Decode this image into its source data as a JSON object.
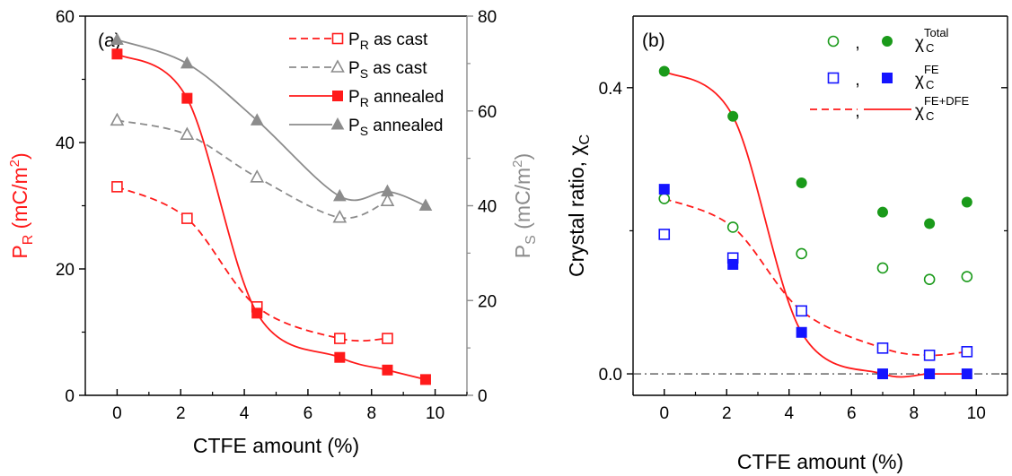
{
  "colors": {
    "red": "#ff1a1a",
    "gray": "#8c8c8c",
    "green": "#1a9a1a",
    "blue": "#1414ff",
    "black": "#000000"
  },
  "chart_data": [
    {
      "type": "line",
      "panel_label": "(a)",
      "xlabel": "CTFE amount (%)",
      "xlim": [
        -1,
        11
      ],
      "xticks": [
        "0",
        "2",
        "4",
        "6",
        "8",
        "10"
      ],
      "ylabel_left": {
        "main": "P",
        "sub": "R",
        "unit_pre": " (mC/m",
        "unit_sup": "2",
        "unit_post": ")"
      },
      "ylabel_right": {
        "main": "P",
        "sub": "S",
        "unit_pre": " (mC/m",
        "unit_sup": "2",
        "unit_post": ")"
      },
      "ylim_left": [
        0,
        60
      ],
      "yticks_left": [
        "0",
        "20",
        "40",
        "60"
      ],
      "ylim_right": [
        0,
        80
      ],
      "yticks_right": [
        "0",
        "20",
        "40",
        "60",
        "80"
      ],
      "legend_position": "top-right",
      "series": [
        {
          "name_main": "P",
          "name_sub": "R",
          "name_rest": " as cast",
          "axis": "left",
          "color_key": "red",
          "marker": "square-open",
          "dashed": true,
          "x": [
            0,
            2.2,
            4.4,
            7,
            8.5
          ],
          "y": [
            33,
            28,
            14,
            9,
            9
          ]
        },
        {
          "name_main": "P",
          "name_sub": "S",
          "name_rest": " as cast",
          "axis": "right",
          "color_key": "gray",
          "marker": "triangle-open",
          "dashed": true,
          "x": [
            0,
            2.2,
            4.4,
            7,
            8.5
          ],
          "y": [
            58,
            55,
            46,
            37.5,
            41
          ]
        },
        {
          "name_main": "P",
          "name_sub": "R",
          "name_rest": " annealed",
          "axis": "left",
          "color_key": "red",
          "marker": "square-filled",
          "dashed": false,
          "x": [
            0,
            2.2,
            4.4,
            7,
            8.5,
            9.7
          ],
          "y": [
            54,
            47,
            13,
            6,
            4,
            2.5
          ]
        },
        {
          "name_main": "P",
          "name_sub": "S",
          "name_rest": " annealed",
          "axis": "right",
          "color_key": "gray",
          "marker": "triangle-filled",
          "dashed": false,
          "x": [
            0,
            2.2,
            4.4,
            7,
            8.5,
            9.7
          ],
          "y": [
            75,
            70,
            58,
            42,
            43,
            40
          ]
        }
      ]
    },
    {
      "type": "scatter",
      "panel_label": "(b)",
      "xlabel": "CTFE amount (%)",
      "xlim": [
        -1,
        11
      ],
      "xticks": [
        "0",
        "2",
        "4",
        "6",
        "8",
        "10"
      ],
      "ylabel": {
        "main": "Crystal ratio, χ",
        "sub": "C"
      },
      "ylim": [
        -0.03,
        0.5
      ],
      "yticks": [
        "0.0",
        "0.4"
      ],
      "reference_line_y": 0,
      "legend_position": "top-right",
      "legend": [
        {
          "symbol": "χ",
          "sub": "C",
          "sup": "Total",
          "separator": ","
        },
        {
          "symbol": "χ",
          "sub": "C",
          "sup": "FE",
          "separator": ","
        },
        {
          "symbol": "χ",
          "sub": "C",
          "sup": "FE+DFE",
          "separator": ","
        }
      ],
      "series": [
        {
          "name": "",
          "color_key": "green",
          "marker": "circle-open",
          "x": [
            0,
            2.2,
            4.4,
            7,
            8.5,
            9.7
          ],
          "y": [
            0.245,
            0.205,
            0.168,
            0.148,
            0.132,
            0.136
          ]
        },
        {
          "name": "",
          "color_key": "green",
          "marker": "circle-filled",
          "x": [
            0,
            2.2,
            4.4,
            7,
            8.5,
            9.7
          ],
          "y": [
            0.423,
            0.36,
            0.267,
            0.226,
            0.21,
            0.24
          ]
        },
        {
          "name": "",
          "color_key": "blue",
          "marker": "square-open",
          "x": [
            0,
            2.2,
            4.4,
            7,
            8.5,
            9.7
          ],
          "y": [
            0.195,
            0.162,
            0.088,
            0.036,
            0.026,
            0.031
          ]
        },
        {
          "name": "",
          "color_key": "blue",
          "marker": "square-filled",
          "x": [
            0,
            2.2,
            4.4,
            7,
            8.5,
            9.7
          ],
          "y": [
            0.258,
            0.153,
            0.058,
            0.0,
            0.0,
            0.0
          ]
        }
      ],
      "fit_lines": [
        {
          "color_key": "red",
          "dashed": true,
          "x": [
            0,
            2.2,
            4.4,
            7,
            8.5,
            9.7
          ],
          "y": [
            0.245,
            0.205,
            0.088,
            0.036,
            0.026,
            0.031
          ]
        },
        {
          "color_key": "red",
          "dashed": false,
          "x": [
            0,
            2.2,
            4.4,
            7,
            8.5,
            9.7
          ],
          "y": [
            0.423,
            0.36,
            0.058,
            0.0,
            0.0,
            0.0
          ]
        }
      ]
    }
  ]
}
